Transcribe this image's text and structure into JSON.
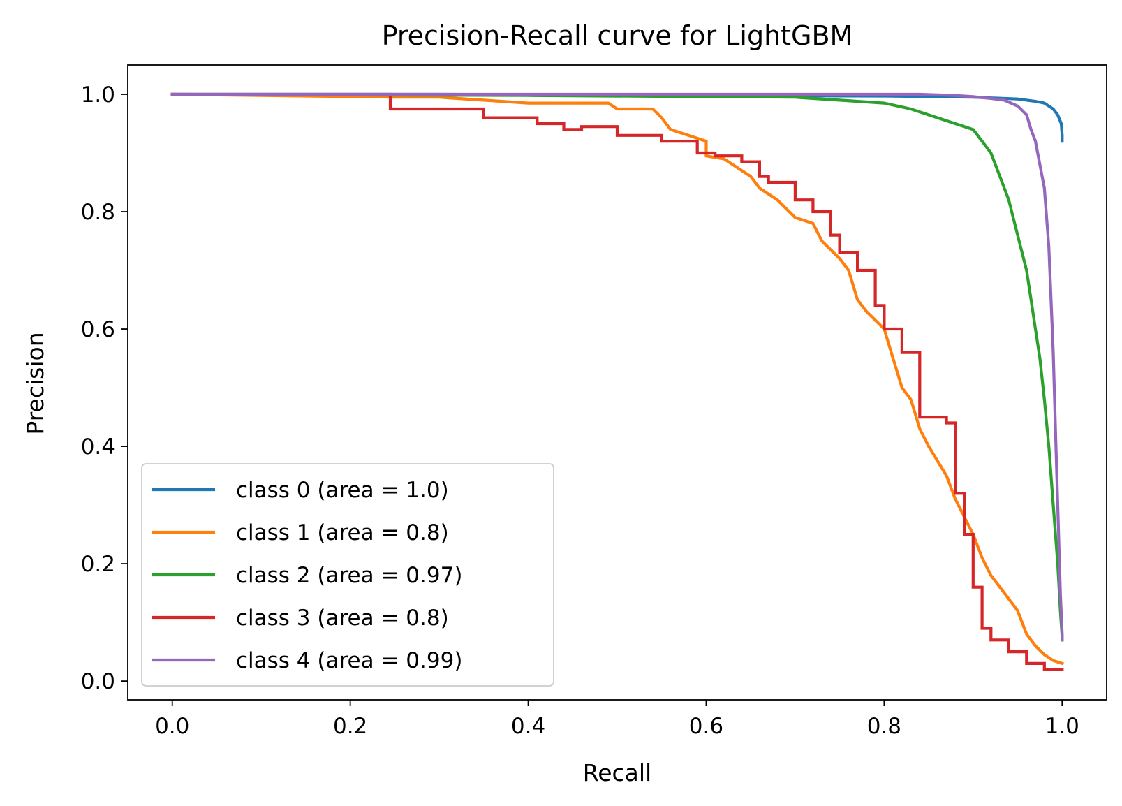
{
  "chart_data": {
    "type": "line",
    "title": "Precision-Recall curve for LightGBM",
    "xlabel": "Recall",
    "ylabel": "Precision",
    "xlim": [
      -0.05,
      1.05
    ],
    "ylim": [
      -0.032,
      1.05
    ],
    "xticks": [
      "0.0",
      "0.2",
      "0.4",
      "0.6",
      "0.8",
      "1.0"
    ],
    "yticks": [
      "0.0",
      "0.2",
      "0.4",
      "0.6",
      "0.8",
      "1.0"
    ],
    "grid": false,
    "legend_position": "lower-left",
    "series": [
      {
        "name": "class 0 (area = 1.0)",
        "color": "#1f77b4",
        "x": [
          0.0,
          0.3,
          0.6,
          0.8,
          0.9,
          0.95,
          0.97,
          0.98,
          0.99,
          0.995,
          0.999,
          1.0,
          1.0
        ],
        "y": [
          1.0,
          1.0,
          0.998,
          0.997,
          0.995,
          0.992,
          0.988,
          0.985,
          0.975,
          0.965,
          0.95,
          0.93,
          0.92
        ]
      },
      {
        "name": "class 1 (area = 0.8)",
        "color": "#ff7f0e",
        "x": [
          0.0,
          0.25,
          0.3,
          0.35,
          0.4,
          0.45,
          0.49,
          0.5,
          0.54,
          0.55,
          0.56,
          0.58,
          0.6,
          0.6,
          0.62,
          0.65,
          0.66,
          0.68,
          0.7,
          0.72,
          0.73,
          0.75,
          0.76,
          0.77,
          0.78,
          0.8,
          0.81,
          0.82,
          0.83,
          0.84,
          0.85,
          0.87,
          0.88,
          0.9,
          0.91,
          0.92,
          0.93,
          0.95,
          0.96,
          0.97,
          0.98,
          0.99,
          1.0
        ],
        "y": [
          1.0,
          0.995,
          0.995,
          0.99,
          0.985,
          0.985,
          0.985,
          0.975,
          0.975,
          0.96,
          0.94,
          0.93,
          0.92,
          0.895,
          0.89,
          0.86,
          0.84,
          0.82,
          0.79,
          0.78,
          0.75,
          0.72,
          0.7,
          0.65,
          0.63,
          0.6,
          0.55,
          0.5,
          0.48,
          0.43,
          0.4,
          0.35,
          0.31,
          0.25,
          0.21,
          0.18,
          0.16,
          0.12,
          0.08,
          0.06,
          0.045,
          0.035,
          0.03
        ]
      },
      {
        "name": "class 2 (area = 0.97)",
        "color": "#2ca02c",
        "x": [
          0.0,
          0.4,
          0.6,
          0.7,
          0.75,
          0.8,
          0.83,
          0.86,
          0.88,
          0.9,
          0.91,
          0.92,
          0.93,
          0.94,
          0.95,
          0.96,
          0.965,
          0.97,
          0.975,
          0.98,
          0.985,
          0.99,
          0.995,
          0.998,
          1.0,
          1.0
        ],
        "y": [
          1.0,
          0.998,
          0.996,
          0.995,
          0.99,
          0.985,
          0.975,
          0.96,
          0.95,
          0.94,
          0.92,
          0.9,
          0.86,
          0.82,
          0.76,
          0.7,
          0.65,
          0.6,
          0.55,
          0.48,
          0.4,
          0.3,
          0.2,
          0.12,
          0.075,
          0.07
        ]
      },
      {
        "name": "class 3 (area = 0.8)",
        "color": "#d62728",
        "x": [
          0.0,
          0.245,
          0.245,
          0.35,
          0.35,
          0.41,
          0.41,
          0.44,
          0.44,
          0.46,
          0.46,
          0.5,
          0.5,
          0.52,
          0.52,
          0.55,
          0.55,
          0.59,
          0.59,
          0.61,
          0.61,
          0.64,
          0.64,
          0.66,
          0.66,
          0.67,
          0.67,
          0.7,
          0.7,
          0.72,
          0.72,
          0.74,
          0.74,
          0.75,
          0.75,
          0.77,
          0.77,
          0.79,
          0.79,
          0.8,
          0.8,
          0.82,
          0.82,
          0.84,
          0.84,
          0.87,
          0.87,
          0.88,
          0.88,
          0.89,
          0.89,
          0.9,
          0.9,
          0.91,
          0.91,
          0.92,
          0.92,
          0.94,
          0.94,
          0.96,
          0.96,
          0.98,
          0.98,
          1.0
        ],
        "y": [
          1.0,
          1.0,
          0.975,
          0.975,
          0.96,
          0.96,
          0.95,
          0.95,
          0.94,
          0.94,
          0.945,
          0.945,
          0.93,
          0.93,
          0.93,
          0.93,
          0.92,
          0.92,
          0.9,
          0.9,
          0.895,
          0.895,
          0.885,
          0.885,
          0.86,
          0.86,
          0.85,
          0.85,
          0.82,
          0.82,
          0.8,
          0.8,
          0.76,
          0.76,
          0.73,
          0.73,
          0.7,
          0.7,
          0.64,
          0.64,
          0.6,
          0.6,
          0.56,
          0.56,
          0.45,
          0.45,
          0.44,
          0.44,
          0.32,
          0.32,
          0.25,
          0.25,
          0.16,
          0.16,
          0.09,
          0.09,
          0.07,
          0.07,
          0.05,
          0.05,
          0.03,
          0.03,
          0.02,
          0.02
        ]
      },
      {
        "name": "class 4 (area = 0.99)",
        "color": "#9467bd",
        "x": [
          0.0,
          0.4,
          0.7,
          0.84,
          0.88,
          0.9,
          0.92,
          0.935,
          0.95,
          0.96,
          0.965,
          0.97,
          0.975,
          0.98,
          0.985,
          0.99,
          0.993,
          0.996,
          0.998,
          1.0,
          1.0
        ],
        "y": [
          1.0,
          1.0,
          1.0,
          1.0,
          0.998,
          0.996,
          0.993,
          0.99,
          0.98,
          0.965,
          0.94,
          0.92,
          0.88,
          0.84,
          0.74,
          0.56,
          0.4,
          0.25,
          0.15,
          0.08,
          0.07
        ]
      }
    ]
  }
}
